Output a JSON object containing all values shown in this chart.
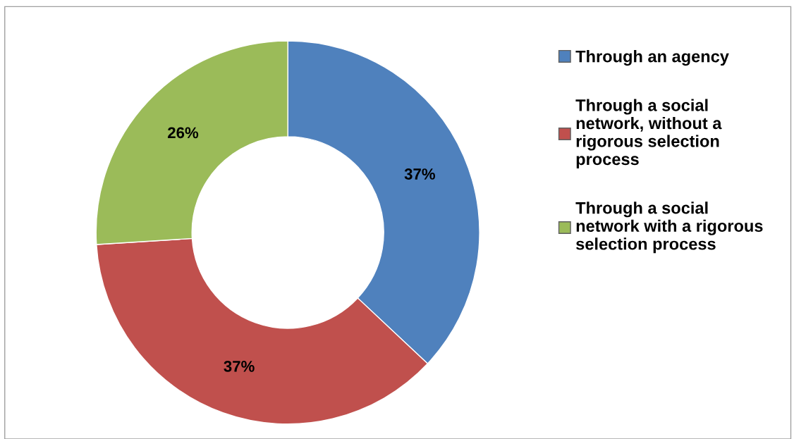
{
  "chart_data": {
    "type": "donut",
    "categories": [
      "Through an agency",
      "Through a social\nnetwork, without a\nrigorous selection\nprocess",
      "Through a social\nnetwork with a rigorous\nselection process"
    ],
    "values": [
      37,
      37,
      26
    ],
    "colors": [
      "#4f81bd",
      "#c0504d",
      "#9bbb59"
    ],
    "value_labels": [
      "37%",
      "37%",
      "26%"
    ],
    "legend": "right"
  }
}
